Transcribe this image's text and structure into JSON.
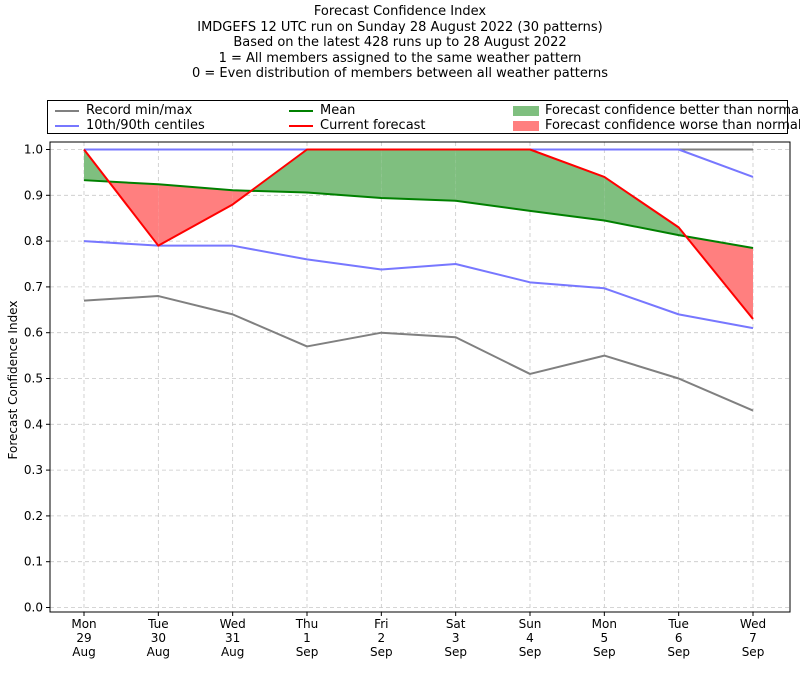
{
  "title_lines": [
    "Forecast Confidence Index",
    "IMDGEFS 12 UTC run on Sunday 28 August 2022 (30 patterns)",
    "Based on the latest 428 runs up to 28 August 2022",
    "1 = All members assigned to the same weather pattern",
    "0 = Even distribution of members between all weather patterns"
  ],
  "legend": {
    "record": "Record min/max",
    "centiles": "10th/90th centiles",
    "mean": "Mean",
    "current": "Current forecast",
    "better": "Forecast confidence better than normal",
    "worse": "Forecast confidence worse than normal"
  },
  "colors": {
    "record": "#808080",
    "centiles": "#7777ff",
    "mean": "#008000",
    "current": "#ff0000",
    "better_fill": "#7fbf7f",
    "worse_fill": "#ff7f7f"
  },
  "chart_data": {
    "type": "line",
    "title": "Forecast Confidence Index",
    "ylabel": "Forecast Confidence Index",
    "xlabel": "",
    "ylim": [
      0,
      1
    ],
    "yticks": [
      "0.0",
      "0.1",
      "0.2",
      "0.3",
      "0.4",
      "0.5",
      "0.6",
      "0.7",
      "0.8",
      "0.9",
      "1.0"
    ],
    "grid": true,
    "legend_position": "top",
    "categories": [
      [
        "Mon",
        "29",
        "Aug"
      ],
      [
        "Tue",
        "30",
        "Aug"
      ],
      [
        "Wed",
        "31",
        "Aug"
      ],
      [
        "Thu",
        "1",
        "Sep"
      ],
      [
        "Fri",
        "2",
        "Sep"
      ],
      [
        "Sat",
        "3",
        "Sep"
      ],
      [
        "Sun",
        "4",
        "Sep"
      ],
      [
        "Mon",
        "5",
        "Sep"
      ],
      [
        "Tue",
        "6",
        "Sep"
      ],
      [
        "Wed",
        "7",
        "Sep"
      ]
    ],
    "series": [
      {
        "name": "Record min/max",
        "key": "record_min",
        "values": [
          0.67,
          0.68,
          0.64,
          0.57,
          0.6,
          0.59,
          0.51,
          0.55,
          0.5,
          0.43
        ]
      },
      {
        "name": "Record min/max",
        "key": "record_max",
        "values": [
          1.0,
          1.0,
          1.0,
          1.0,
          1.0,
          1.0,
          1.0,
          1.0,
          1.0,
          1.0
        ]
      },
      {
        "name": "10th/90th centiles",
        "key": "p10",
        "values": [
          0.8,
          0.79,
          0.79,
          0.76,
          0.738,
          0.75,
          0.71,
          0.697,
          0.64,
          0.61
        ]
      },
      {
        "name": "10th/90th centiles",
        "key": "p90",
        "values": [
          1.0,
          1.0,
          1.0,
          1.0,
          1.0,
          1.0,
          1.0,
          1.0,
          1.0,
          0.94
        ]
      },
      {
        "name": "Mean",
        "key": "mean",
        "values": [
          0.933,
          0.924,
          0.911,
          0.906,
          0.894,
          0.888,
          0.866,
          0.845,
          0.813,
          0.785
        ]
      },
      {
        "name": "Current forecast",
        "key": "current",
        "values": [
          1.0,
          0.79,
          0.88,
          1.0,
          1.0,
          1.0,
          1.0,
          0.94,
          0.83,
          0.63
        ]
      }
    ]
  }
}
